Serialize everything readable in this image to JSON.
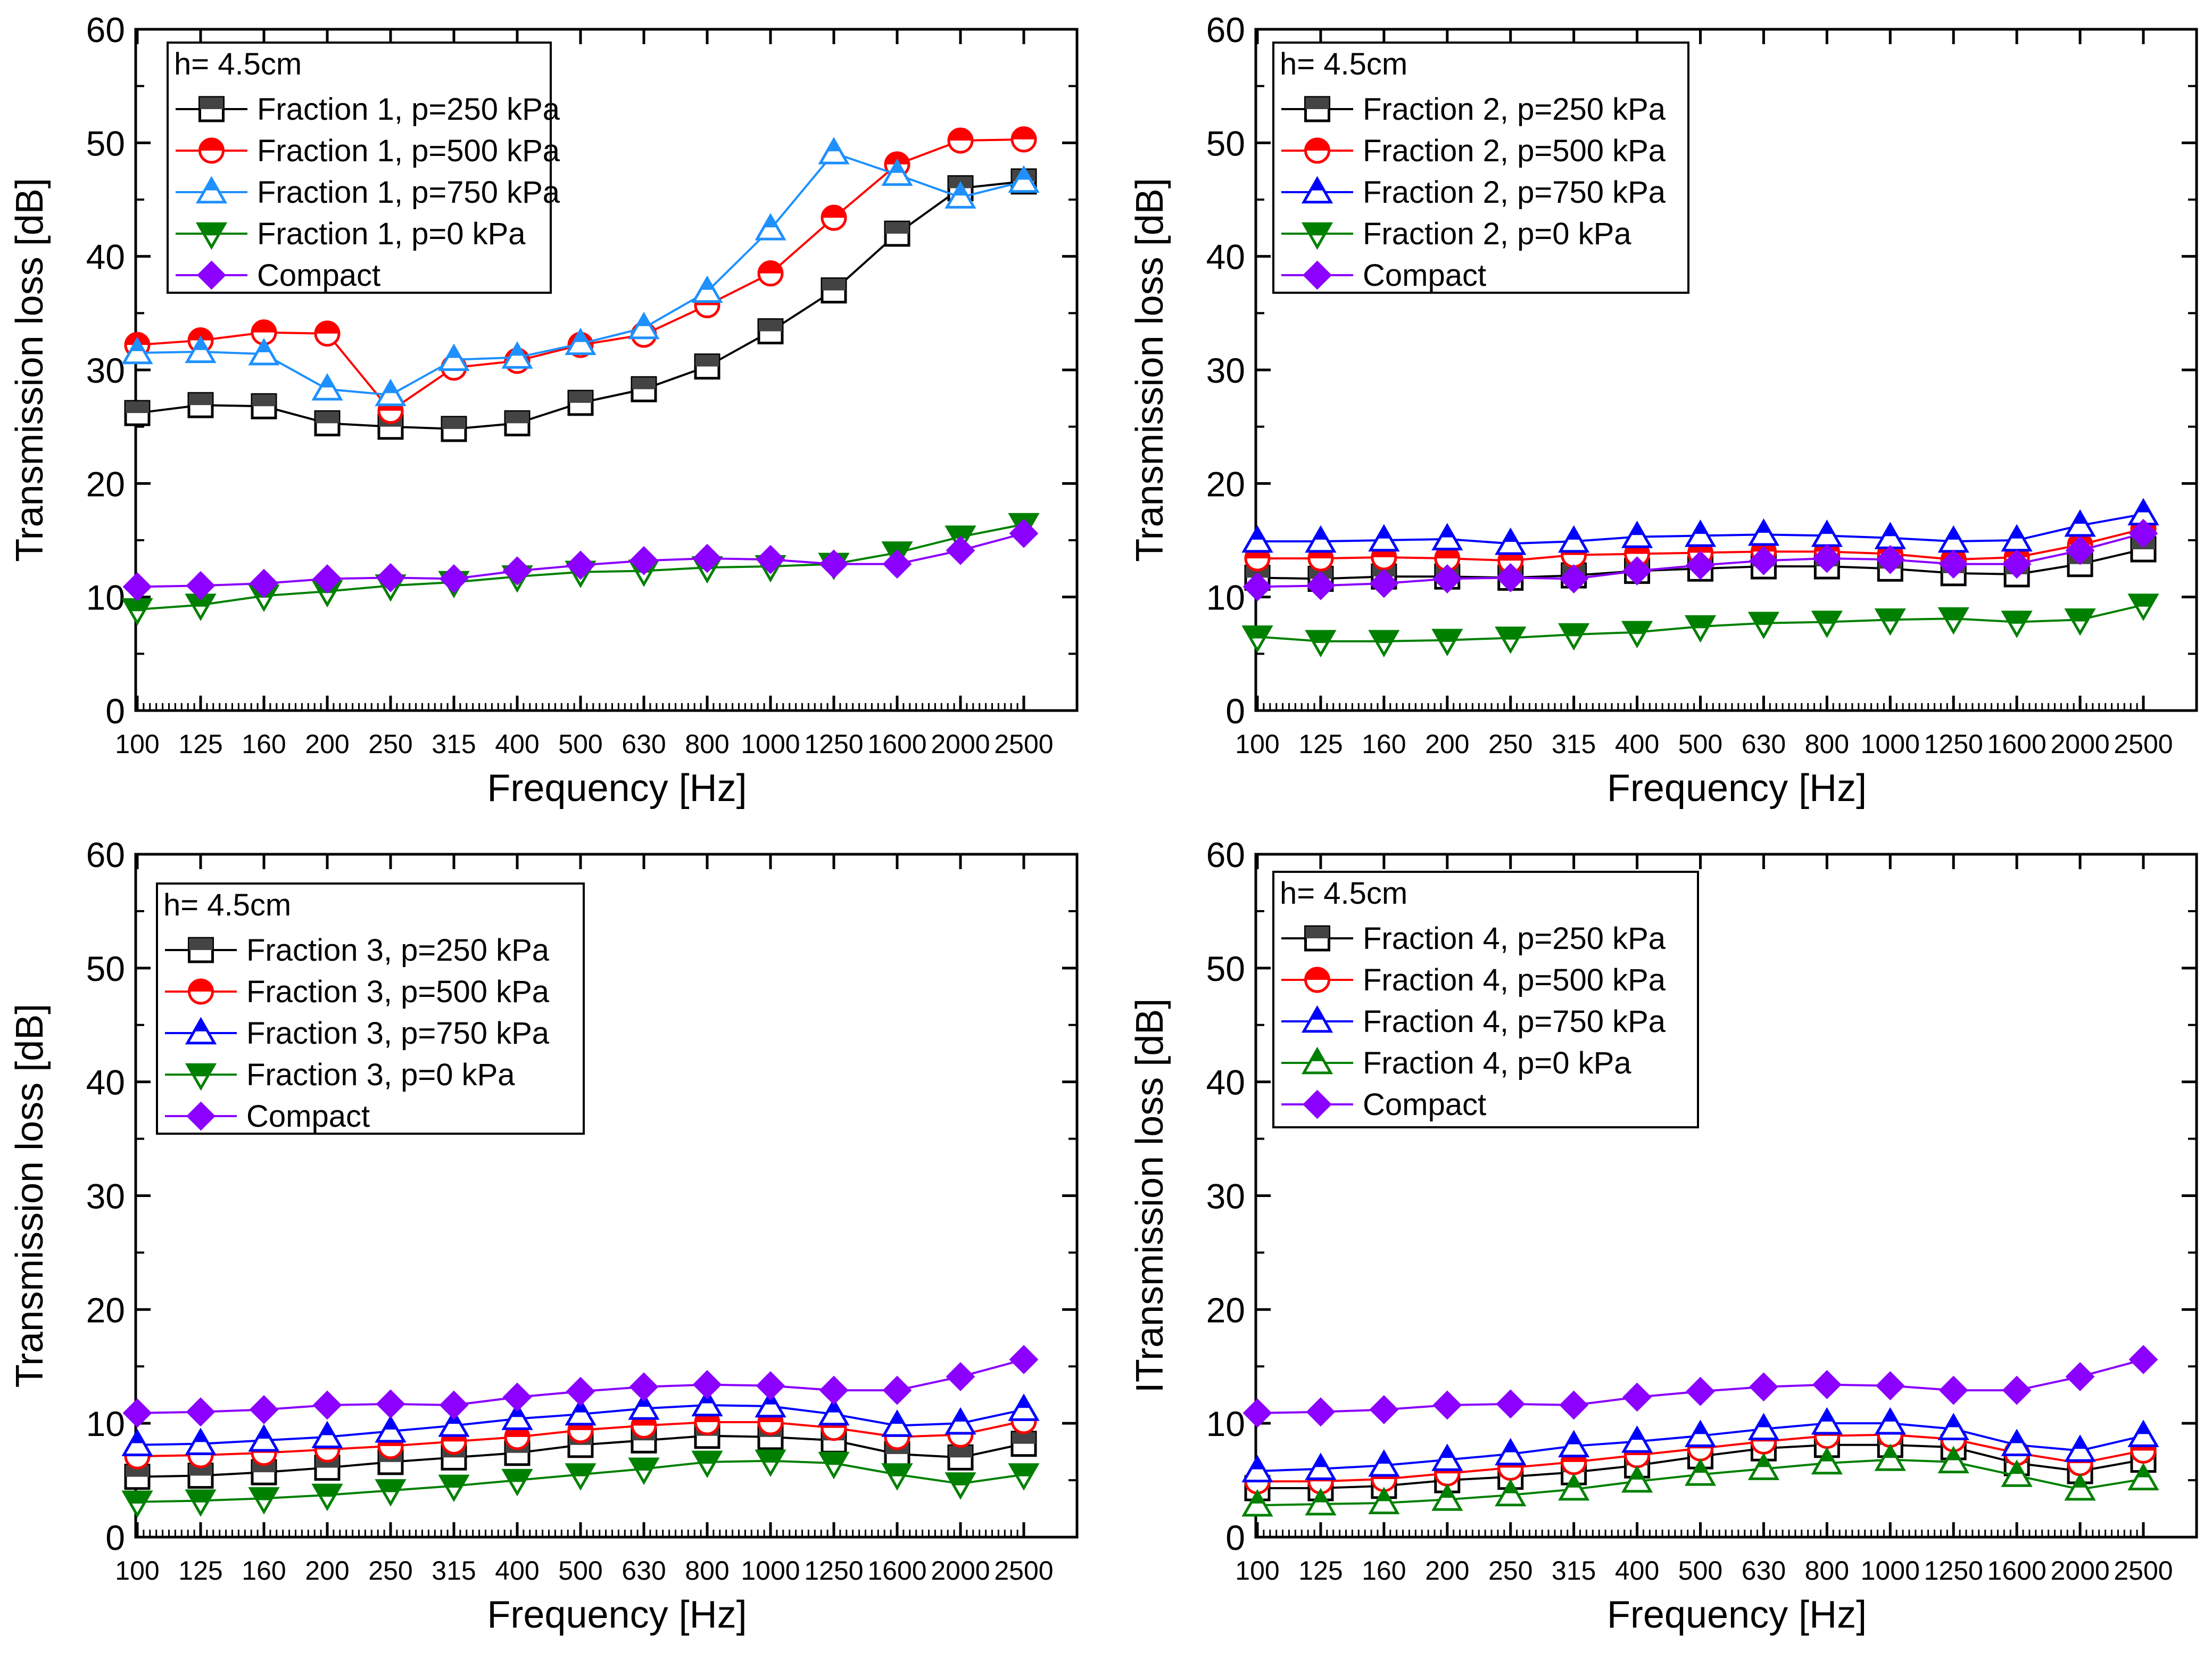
{
  "chart_data": [
    {
      "type": "line",
      "panel": "top-left",
      "title": "",
      "xlabel": "Frequency [Hz]",
      "ylabel": "Transmission loss [dB]",
      "categories": [
        "100",
        "125",
        "160",
        "200",
        "250",
        "315",
        "400",
        "500",
        "630",
        "800",
        "1000",
        "1250",
        "1600",
        "2000",
        "2500"
      ],
      "yticks": [
        "0",
        "10",
        "20",
        "30",
        "40",
        "50",
        "60"
      ],
      "ylim": [
        0,
        60
      ],
      "legend_position": "top-left",
      "legend_title": "h= 4.5cm",
      "series": [
        {
          "name": "Fraction 1, p=250 kPa",
          "color": "#000000",
          "marker": "square-half",
          "values": [
            26.2,
            26.9,
            26.8,
            25.3,
            25.0,
            24.8,
            25.3,
            27.1,
            28.3,
            30.3,
            33.4,
            37.0,
            42.0,
            46.0,
            46.6
          ]
        },
        {
          "name": "Fraction 1, p=500 kPa",
          "color": "#ff0000",
          "marker": "circle-half",
          "values": [
            32.2,
            32.6,
            33.3,
            33.2,
            26.4,
            30.2,
            30.8,
            32.2,
            33.1,
            35.7,
            38.5,
            43.4,
            48.1,
            50.2,
            50.3
          ]
        },
        {
          "name": "Fraction 1, p=750 kPa",
          "color": "#1e90ff",
          "marker": "triangle-up-half",
          "values": [
            31.5,
            31.6,
            31.4,
            28.3,
            27.8,
            30.9,
            31.1,
            32.3,
            33.7,
            36.9,
            42.4,
            49.1,
            47.2,
            45.2,
            46.6
          ]
        },
        {
          "name": "Fraction 1, p=0 kPa",
          "color": "#008000",
          "marker": "triangle-down-half",
          "values": [
            8.9,
            9.3,
            10.1,
            10.5,
            11.0,
            11.3,
            11.8,
            12.2,
            12.3,
            12.6,
            12.7,
            12.9,
            13.9,
            15.3,
            16.4
          ]
        },
        {
          "name": "Compact",
          "color": "#8b00ff",
          "marker": "diamond",
          "values": [
            10.9,
            11.0,
            11.2,
            11.6,
            11.7,
            11.6,
            12.3,
            12.8,
            13.2,
            13.4,
            13.3,
            12.9,
            12.9,
            14.1,
            15.6
          ]
        }
      ]
    },
    {
      "type": "line",
      "panel": "top-right",
      "title": "",
      "xlabel": "Frequency [Hz]",
      "ylabel": "Transmission loss [dB]",
      "categories": [
        "100",
        "125",
        "160",
        "200",
        "250",
        "315",
        "400",
        "500",
        "630",
        "800",
        "1000",
        "1250",
        "1600",
        "2000",
        "2500"
      ],
      "yticks": [
        "0",
        "10",
        "20",
        "30",
        "40",
        "50",
        "60"
      ],
      "ylim": [
        0,
        60
      ],
      "legend_position": "top-left",
      "legend_title": "h= 4.5cm",
      "series": [
        {
          "name": "Fraction 2, p=250 kPa",
          "color": "#000000",
          "marker": "square-half",
          "values": [
            11.7,
            11.6,
            11.8,
            11.8,
            11.7,
            11.9,
            12.3,
            12.5,
            12.7,
            12.7,
            12.5,
            12.1,
            12.0,
            12.9,
            14.2
          ]
        },
        {
          "name": "Fraction 2, p=500 kPa",
          "color": "#ff0000",
          "marker": "circle-half",
          "values": [
            13.4,
            13.4,
            13.5,
            13.4,
            13.2,
            13.7,
            13.8,
            13.9,
            14.0,
            14.0,
            13.8,
            13.3,
            13.5,
            14.6,
            16.0
          ]
        },
        {
          "name": "Fraction 2, p=750 kPa",
          "color": "#0000ff",
          "marker": "triangle-up-half",
          "values": [
            14.9,
            14.9,
            15.0,
            15.1,
            14.7,
            14.9,
            15.3,
            15.4,
            15.5,
            15.4,
            15.2,
            14.9,
            15.0,
            16.3,
            17.3
          ]
        },
        {
          "name": "Fraction 2, p=0 kPa",
          "color": "#008000",
          "marker": "triangle-down-half",
          "values": [
            6.5,
            6.1,
            6.1,
            6.2,
            6.4,
            6.7,
            6.9,
            7.4,
            7.7,
            7.8,
            8.0,
            8.1,
            7.8,
            8.0,
            9.3
          ]
        },
        {
          "name": "Compact",
          "color": "#8b00ff",
          "marker": "diamond",
          "values": [
            10.9,
            11.0,
            11.2,
            11.6,
            11.7,
            11.6,
            12.3,
            12.8,
            13.2,
            13.4,
            13.3,
            12.9,
            12.9,
            14.1,
            15.6
          ]
        }
      ]
    },
    {
      "type": "line",
      "panel": "bottom-left",
      "title": "",
      "xlabel": "Frequency [Hz]",
      "ylabel": "Transmission loss [dB]",
      "categories": [
        "100",
        "125",
        "160",
        "200",
        "250",
        "315",
        "400",
        "500",
        "630",
        "800",
        "1000",
        "1250",
        "1600",
        "2000",
        "2500"
      ],
      "yticks": [
        "0",
        "10",
        "20",
        "30",
        "40",
        "50",
        "60"
      ],
      "ylim": [
        0,
        60
      ],
      "legend_position": "top-left",
      "legend_title": "h= 4.5cm",
      "series": [
        {
          "name": "Fraction 3, p=250 kPa",
          "color": "#000000",
          "marker": "square-half",
          "values": [
            5.3,
            5.4,
            5.7,
            6.1,
            6.6,
            7.0,
            7.4,
            8.1,
            8.5,
            8.9,
            8.8,
            8.5,
            7.3,
            7.0,
            8.2
          ]
        },
        {
          "name": "Fraction 3, p=500 kPa",
          "color": "#ff0000",
          "marker": "circle-half",
          "values": [
            7.1,
            7.2,
            7.4,
            7.7,
            8.0,
            8.4,
            8.8,
            9.4,
            9.8,
            10.1,
            10.1,
            9.6,
            8.8,
            9.0,
            10.2
          ]
        },
        {
          "name": "Fraction 3, p=750 kPa",
          "color": "#0000ff",
          "marker": "triangle-up-half",
          "values": [
            8.1,
            8.2,
            8.5,
            8.8,
            9.3,
            9.8,
            10.4,
            10.8,
            11.3,
            11.6,
            11.5,
            10.8,
            9.8,
            10.0,
            11.2
          ]
        },
        {
          "name": "Fraction 3, p=0 kPa",
          "color": "#008000",
          "marker": "triangle-down-half",
          "values": [
            3.1,
            3.2,
            3.4,
            3.7,
            4.1,
            4.5,
            5.0,
            5.5,
            6.0,
            6.6,
            6.7,
            6.5,
            5.5,
            4.7,
            5.5
          ]
        },
        {
          "name": "Compact",
          "color": "#8b00ff",
          "marker": "diamond",
          "values": [
            10.9,
            11.0,
            11.2,
            11.6,
            11.7,
            11.6,
            12.3,
            12.8,
            13.2,
            13.4,
            13.3,
            12.9,
            12.9,
            14.1,
            15.6
          ]
        }
      ]
    },
    {
      "type": "line",
      "panel": "bottom-right",
      "title": "",
      "xlabel": "Frequency [Hz]",
      "ylabel": "ITransmission loss [dB]",
      "categories": [
        "100",
        "125",
        "160",
        "200",
        "250",
        "315",
        "400",
        "500",
        "630",
        "800",
        "1000",
        "1250",
        "1600",
        "2000",
        "2500"
      ],
      "yticks": [
        "0",
        "10",
        "20",
        "30",
        "40",
        "50",
        "60"
      ],
      "ylim": [
        0,
        60
      ],
      "legend_position": "top-left",
      "legend_title": "h= 4.5cm",
      "series": [
        {
          "name": "Fraction 4, p=250 kPa",
          "color": "#000000",
          "marker": "square-half",
          "values": [
            4.3,
            4.3,
            4.5,
            5.0,
            5.3,
            5.7,
            6.3,
            7.1,
            7.8,
            8.1,
            8.1,
            7.9,
            6.5,
            5.8,
            6.8
          ]
        },
        {
          "name": "Fraction 4, p=500 kPa",
          "color": "#ff0000",
          "marker": "circle-half",
          "values": [
            4.9,
            4.9,
            5.1,
            5.6,
            6.1,
            6.6,
            7.2,
            7.8,
            8.4,
            8.9,
            9.0,
            8.6,
            7.4,
            6.5,
            7.6
          ]
        },
        {
          "name": "Fraction 4, p=750 kPa",
          "color": "#0000ff",
          "marker": "triangle-up-half",
          "values": [
            5.8,
            6.0,
            6.3,
            6.8,
            7.3,
            8.0,
            8.4,
            8.9,
            9.5,
            10.0,
            10.0,
            9.5,
            8.1,
            7.6,
            8.9
          ]
        },
        {
          "name": "Fraction 4, p=0 kPa",
          "color": "#008000",
          "marker": "triangle-up-half-green",
          "values": [
            2.8,
            2.9,
            3.0,
            3.3,
            3.7,
            4.2,
            4.9,
            5.5,
            6.0,
            6.5,
            6.8,
            6.6,
            5.4,
            4.2,
            5.1
          ]
        },
        {
          "name": "Compact",
          "color": "#8b00ff",
          "marker": "diamond",
          "values": [
            10.9,
            11.0,
            11.2,
            11.6,
            11.7,
            11.6,
            12.3,
            12.8,
            13.2,
            13.4,
            13.3,
            12.9,
            12.9,
            14.1,
            15.6
          ]
        }
      ]
    }
  ]
}
